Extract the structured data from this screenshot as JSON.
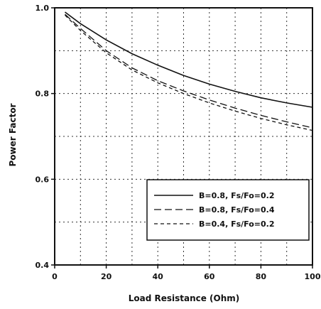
{
  "chart_data": {
    "type": "line",
    "xlabel": "Load Resistance (Ohm)",
    "ylabel": "Power Factor",
    "xlim": [
      0,
      100
    ],
    "ylim": [
      0.4,
      1.0
    ],
    "xticks": [
      0,
      20,
      40,
      60,
      80,
      100
    ],
    "yticks": [
      0.4,
      0.6,
      0.8,
      1.0
    ],
    "xtick_labels": [
      "0",
      "20",
      "40",
      "60",
      "80",
      "100"
    ],
    "ytick_labels": [
      "0.4",
      "0.6",
      "0.8",
      "1.0"
    ],
    "grid": true,
    "legend_position": "bottom-right",
    "series": [
      {
        "name": "B=0.8, Fs/Fo=0.2",
        "style": "solid",
        "x": [
          4,
          10,
          20,
          30,
          40,
          50,
          60,
          70,
          80,
          90,
          100
        ],
        "y": [
          0.99,
          0.963,
          0.925,
          0.893,
          0.866,
          0.842,
          0.822,
          0.805,
          0.79,
          0.778,
          0.768
        ]
      },
      {
        "name": "B=0.8, Fs/Fo=0.4",
        "style": "long-dash",
        "x": [
          4,
          10,
          20,
          30,
          40,
          50,
          60,
          70,
          80,
          90,
          100
        ],
        "y": [
          0.985,
          0.952,
          0.9,
          0.86,
          0.83,
          0.806,
          0.785,
          0.766,
          0.749,
          0.734,
          0.72
        ]
      },
      {
        "name": "B=0.4, Fs/Fo=0.2",
        "style": "short-dash",
        "x": [
          4,
          10,
          20,
          30,
          40,
          50,
          60,
          70,
          80,
          90,
          100
        ],
        "y": [
          0.983,
          0.947,
          0.895,
          0.855,
          0.825,
          0.8,
          0.778,
          0.759,
          0.742,
          0.727,
          0.714
        ]
      }
    ]
  }
}
